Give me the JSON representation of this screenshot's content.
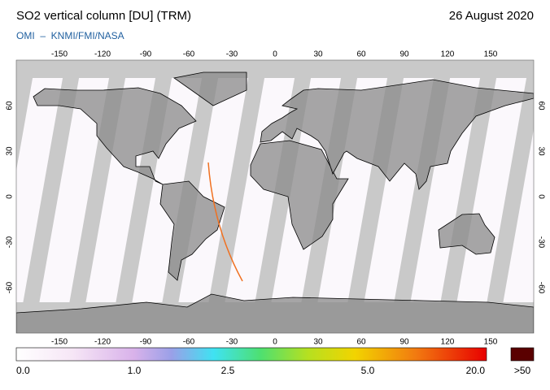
{
  "header": {
    "title": "SO2 vertical column [DU] (TRM)",
    "date": "26 August 2020",
    "credit": "OMI  –  KNMI/FMI/NASA"
  },
  "map": {
    "lon_ticks": [
      -150,
      -120,
      -90,
      -60,
      -30,
      0,
      30,
      60,
      90,
      120,
      150
    ],
    "lat_ticks": [
      60,
      30,
      0,
      -30,
      -60
    ]
  },
  "colorbar": {
    "labels": [
      "0.0",
      "1.0",
      "2.5",
      "5.0",
      "20.0"
    ],
    "overflow": ">50"
  }
}
